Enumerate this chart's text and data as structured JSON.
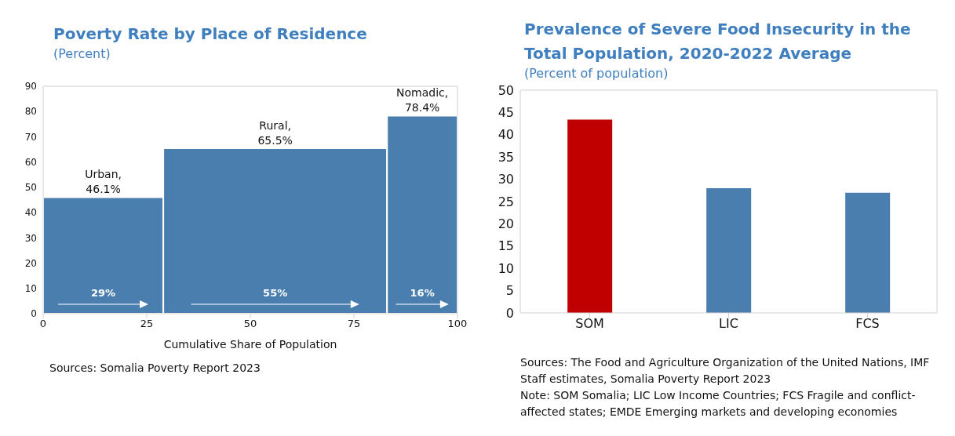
{
  "chart_data": [
    {
      "type": "histogram",
      "title": "Poverty Rate by Place of Residence",
      "subtitle": "(Percent)",
      "xlabel": "Cumulative Share of Population",
      "bins": [
        0,
        29,
        83,
        100
      ],
      "values": [
        46.1,
        65.5,
        78.4
      ],
      "color": "#4a7eae",
      "xlim": [
        0,
        100
      ],
      "xticks": [
        0,
        25,
        50,
        75,
        100
      ],
      "ylim": [
        0,
        90
      ],
      "yticks": [
        0,
        10,
        20,
        30,
        40,
        50,
        60,
        70,
        80,
        90
      ],
      "annotations": [
        {
          "text": "Urban, 46.1%",
          "x": 14.5,
          "y": 46.1
        },
        {
          "text": "Rural, 65.5%",
          "x": 56,
          "y": 65.5
        },
        {
          "text": "Nomadic, 78.4%",
          "x": 91.5,
          "y": 78.4
        },
        "29%",
        "55%",
        "16%",
        "Sources: Somalia Poverty Report 2023"
      ]
    },
    {
      "type": "bar",
      "title": "Prevalence of Severe Food Insecurity in the Total Population, 2020-2022 Average",
      "subtitle": "(Percent of population)",
      "categories": [
        "SOM",
        "LIC",
        "FCS"
      ],
      "values": [
        43.4,
        28,
        27
      ],
      "colors": [
        "#c00000",
        "#4a7eae",
        "#4a7eae"
      ],
      "ylim": [
        0,
        50
      ],
      "yticks": [
        0,
        5,
        10,
        15,
        20,
        25,
        30,
        35,
        40,
        45,
        50
      ],
      "annotations": [
        "Sources: The Food and Agriculture Organization of the United Nations, IMF Staff estimates, Somalia Poverty Report 2023",
        "Note: SOM Somalia; LIC Low Income Countries; FCS Fragile and conflict-affected states; EMDE Emerging markets and developing economies"
      ]
    }
  ]
}
